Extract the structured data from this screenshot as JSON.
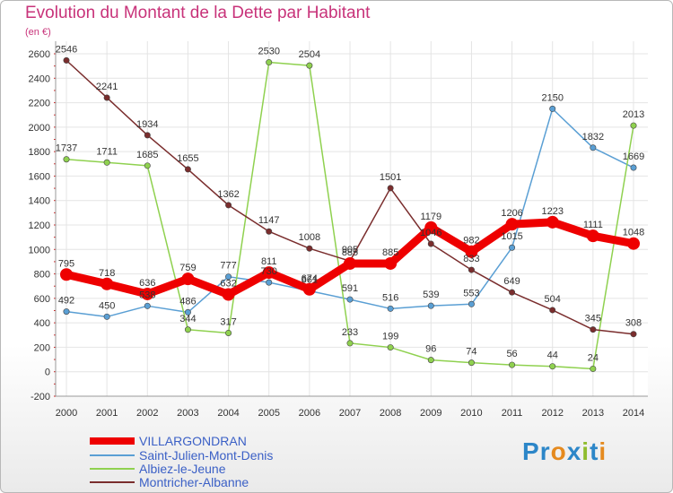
{
  "header": {
    "title": "Evolution du Montant de la Dette par Habitant",
    "subtitle": "(en €)"
  },
  "logo": {
    "text": "Proxiti",
    "letters": [
      "P",
      "r",
      "o",
      "x",
      "i",
      "t",
      "i"
    ],
    "colors": [
      "#2c86c8",
      "#2c86c8",
      "#e58a1f",
      "#2c86c8",
      "#8fbc2e",
      "#2c86c8",
      "#e58a1f"
    ]
  },
  "chart_data": {
    "type": "line",
    "categories": [
      "2000",
      "2001",
      "2002",
      "2003",
      "2004",
      "2005",
      "2006",
      "2007",
      "2008",
      "2009",
      "2010",
      "2011",
      "2012",
      "2013",
      "2014"
    ],
    "ylim": [
      -200,
      2600
    ],
    "yticks": [
      -200,
      0,
      200,
      400,
      600,
      800,
      1000,
      1200,
      1400,
      1600,
      1800,
      2000,
      2200,
      2400,
      2600
    ],
    "grid": true,
    "legend_position": "bottom-left",
    "series": [
      {
        "name": "VILLARGONDRAN",
        "color": "#ee0000",
        "emphasis": true,
        "values": [
          795,
          718,
          636,
          759,
          632,
          811,
          674,
          885,
          885,
          1179,
          982,
          1206,
          1223,
          1111,
          1048
        ],
        "labels": [
          "795",
          "718",
          "636",
          "759",
          "632",
          "811",
          "674",
          "885",
          "885",
          "1179",
          "982",
          "1206",
          "1223",
          "1111",
          "1048"
        ]
      },
      {
        "name": "Saint-Julien-Mont-Denis",
        "color": "#5a9fd4",
        "values": [
          492,
          450,
          538,
          486,
          777,
          730,
          661,
          591,
          516,
          539,
          553,
          1015,
          2150,
          1832,
          1669
        ],
        "labels": [
          "492",
          "450",
          "538",
          "486",
          "777",
          "730",
          "661",
          "591",
          "516",
          "539",
          "553",
          "1015",
          "2150",
          "1832",
          "1669"
        ]
      },
      {
        "name": "Albiez-le-Jeune",
        "color": "#8fd14f",
        "values": [
          1737,
          1711,
          1685,
          344,
          317,
          2530,
          2504,
          233,
          199,
          96,
          74,
          56,
          44,
          24,
          2013
        ],
        "labels": [
          "1737",
          "1711",
          "1685",
          "344",
          "317",
          "2530",
          "2504",
          "233",
          "199",
          "96",
          "74",
          "56",
          "44",
          "24",
          "2013"
        ]
      },
      {
        "name": "Montricher-Albanne",
        "color": "#7a2d2d",
        "values": [
          2546,
          2241,
          1934,
          1655,
          1362,
          1147,
          1008,
          905,
          1501,
          1046,
          833,
          649,
          504,
          345,
          308
        ],
        "labels": [
          "2546",
          "2241",
          "1934",
          "1655",
          "1362",
          "1147",
          "1008",
          "905",
          "1501",
          "1046",
          "833",
          "649",
          "504",
          "345",
          "308"
        ]
      }
    ]
  }
}
